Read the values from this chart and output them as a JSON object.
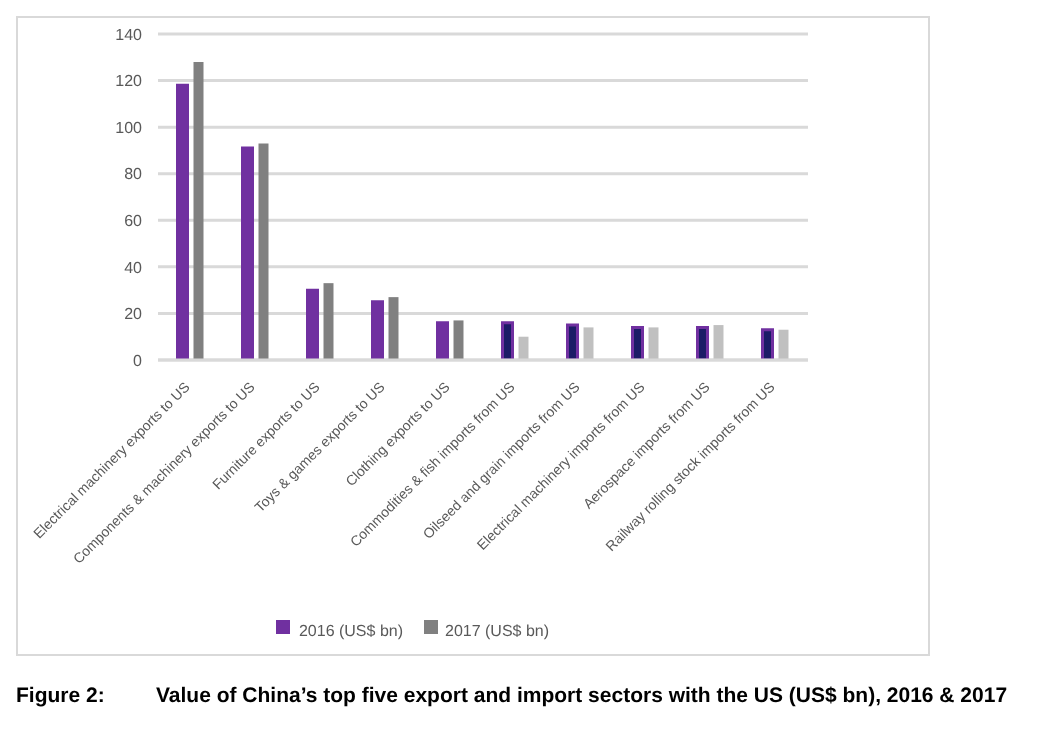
{
  "chart_data": {
    "type": "bar",
    "title": "Value of China’s top five export and import sectors with the US (US$ bn), 2016 & 2017",
    "annotations": [
      "Figure 2:"
    ],
    "categories": [
      "Electrical machinery exports to US",
      "Components & machinery exports to US",
      "Furniture exports to US",
      "Toys & games exports to US",
      "Clothing exports to US",
      "Commodities & fish imports from US",
      "Oilseed and grain imports from US",
      "Electrical machinery imports from US",
      "Aerospace imports from US",
      "Railway rolling stock imports from US"
    ],
    "series": [
      {
        "name": "2016 (US$ bn)",
        "color": "#7030a0",
        "colors": [
          "#7030a0",
          "#7030a0",
          "#7030a0",
          "#7030a0",
          "#7030a0",
          "#1b1b66",
          "#1b1b66",
          "#1b1b66",
          "#1b1b66",
          "#1b1b66"
        ],
        "values": [
          118,
          91,
          30,
          25,
          16,
          16,
          15,
          14,
          14,
          13
        ]
      },
      {
        "name": "2017 (US$ bn)",
        "color": "#808080",
        "colors": [
          "#808080",
          "#808080",
          "#808080",
          "#808080",
          "#808080",
          "#c0c0c0",
          "#c0c0c0",
          "#c0c0c0",
          "#c0c0c0",
          "#c0c0c0"
        ],
        "values": [
          128,
          93,
          33,
          27,
          17,
          10,
          14,
          14,
          15,
          13
        ]
      }
    ],
    "ylim": [
      0,
      140
    ],
    "yticks": [
      0,
      20,
      40,
      60,
      80,
      100,
      120,
      140
    ],
    "grid": "y",
    "legend": "bottom"
  }
}
